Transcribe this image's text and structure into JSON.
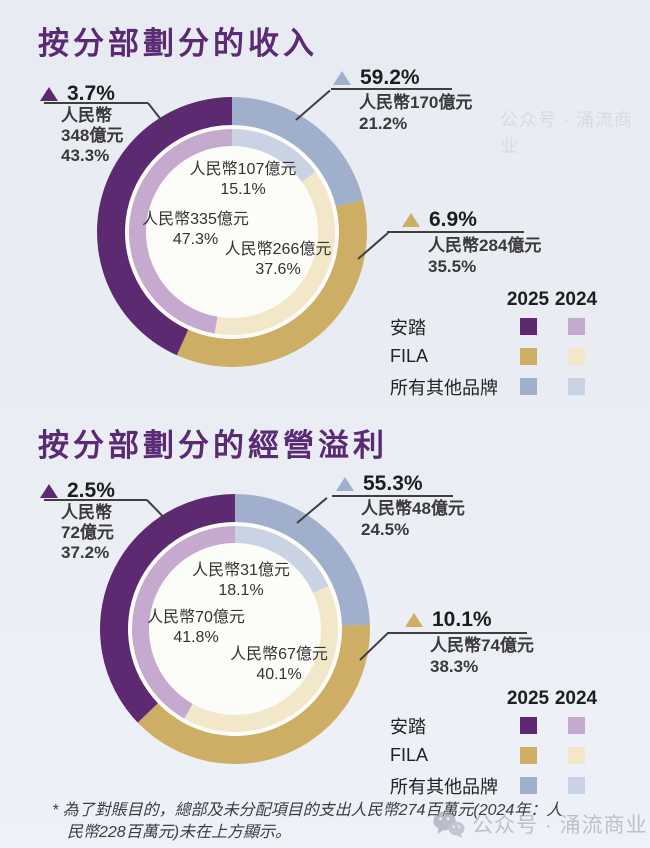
{
  "page": {
    "background_top": "#e9ebf3",
    "background_bottom": "#eef1f8"
  },
  "palette": {
    "anta_2025": "#5d2a72",
    "anta_2024": "#c5a9ce",
    "fila_2025": "#cdae64",
    "fila_2024": "#f2e7c9",
    "other_2025": "#9fafcc",
    "other_2024": "#c9d3e3",
    "title_text": "#5a2a75",
    "label_text": "#333333",
    "growth_text": "#1d1d1d",
    "callout_line": "#3f3f3f",
    "donut_center": "#fcfcf8",
    "footnote_text": "#3c3c44",
    "watermark_text": "#9fa3b2"
  },
  "legend": {
    "col_2025": "2025",
    "col_2024": "2024",
    "rows": [
      {
        "label": "安踏"
      },
      {
        "label": "FILA"
      },
      {
        "label": "所有其他品牌"
      }
    ]
  },
  "footnote": {
    "line1": "* 為了對賬目的，總部及未分配項目的支出人民幣274百萬元(2024年：人",
    "line2": "民幣228百萬元)未在上方顯示。"
  },
  "watermark": {
    "text": "公众号 · 涌流商业"
  },
  "chart_data": [
    {
      "type": "pie",
      "variant": "nested-donut",
      "title": "按分部劃分的收入",
      "unit": "人民幣億元",
      "direction": "clockwise",
      "start_angle_deg": 0,
      "legend_position": "right-bottom",
      "rings": [
        {
          "year": "2025",
          "position": "outer",
          "segments": [
            {
              "brand": "所有其他品牌",
              "pct": 21.2,
              "pct_label": "21.2%",
              "amount": "人民幣170億元",
              "yoy_growth": "59.2%",
              "color_key": "other_2025"
            },
            {
              "brand": "FILA",
              "pct": 35.5,
              "pct_label": "35.5%",
              "amount": "人民幣284億元",
              "yoy_growth": "6.9%",
              "color_key": "fila_2025"
            },
            {
              "brand": "安踏",
              "pct": 43.3,
              "pct_label": "43.3%",
              "amount": "人民幣348億元",
              "amount_l1": "人民幣",
              "amount_l2": "348億元",
              "yoy_growth": "3.7%",
              "color_key": "anta_2025"
            }
          ]
        },
        {
          "year": "2024",
          "position": "inner",
          "segments": [
            {
              "brand": "所有其他品牌",
              "pct": 15.1,
              "pct_label": "15.1%",
              "amount": "人民幣107億元",
              "color_key": "other_2024"
            },
            {
              "brand": "FILA",
              "pct": 37.6,
              "pct_label": "37.6%",
              "amount": "人民幣266億元",
              "color_key": "fila_2024"
            },
            {
              "brand": "安踏",
              "pct": 47.3,
              "pct_label": "47.3%",
              "amount": "人民幣335億元",
              "color_key": "anta_2024"
            }
          ]
        }
      ]
    },
    {
      "type": "pie",
      "variant": "nested-donut",
      "title": "按分部劃分的經營溢利",
      "unit": "人民幣億元",
      "direction": "clockwise",
      "start_angle_deg": 0,
      "legend_position": "right-bottom",
      "rings": [
        {
          "year": "2025",
          "position": "outer",
          "segments": [
            {
              "brand": "所有其他品牌",
              "pct": 24.5,
              "pct_label": "24.5%",
              "amount": "人民幣48億元",
              "yoy_growth": "55.3%",
              "color_key": "other_2025"
            },
            {
              "brand": "FILA",
              "pct": 38.3,
              "pct_label": "38.3%",
              "amount": "人民幣74億元",
              "yoy_growth": "10.1%",
              "color_key": "fila_2025"
            },
            {
              "brand": "安踏",
              "pct": 37.2,
              "pct_label": "37.2%",
              "amount": "人民幣72億元",
              "amount_l1": "人民幣",
              "amount_l2": "72億元",
              "yoy_growth": "2.5%",
              "color_key": "anta_2025"
            }
          ]
        },
        {
          "year": "2024",
          "position": "inner",
          "segments": [
            {
              "brand": "所有其他品牌",
              "pct": 18.1,
              "pct_label": "18.1%",
              "amount": "人民幣31億元",
              "color_key": "other_2024"
            },
            {
              "brand": "FILA",
              "pct": 40.1,
              "pct_label": "40.1%",
              "amount": "人民幣67億元",
              "color_key": "fila_2024"
            },
            {
              "brand": "安踏",
              "pct": 41.8,
              "pct_label": "41.8%",
              "amount": "人民幣70億元",
              "color_key": "anta_2024"
            }
          ]
        }
      ]
    }
  ]
}
